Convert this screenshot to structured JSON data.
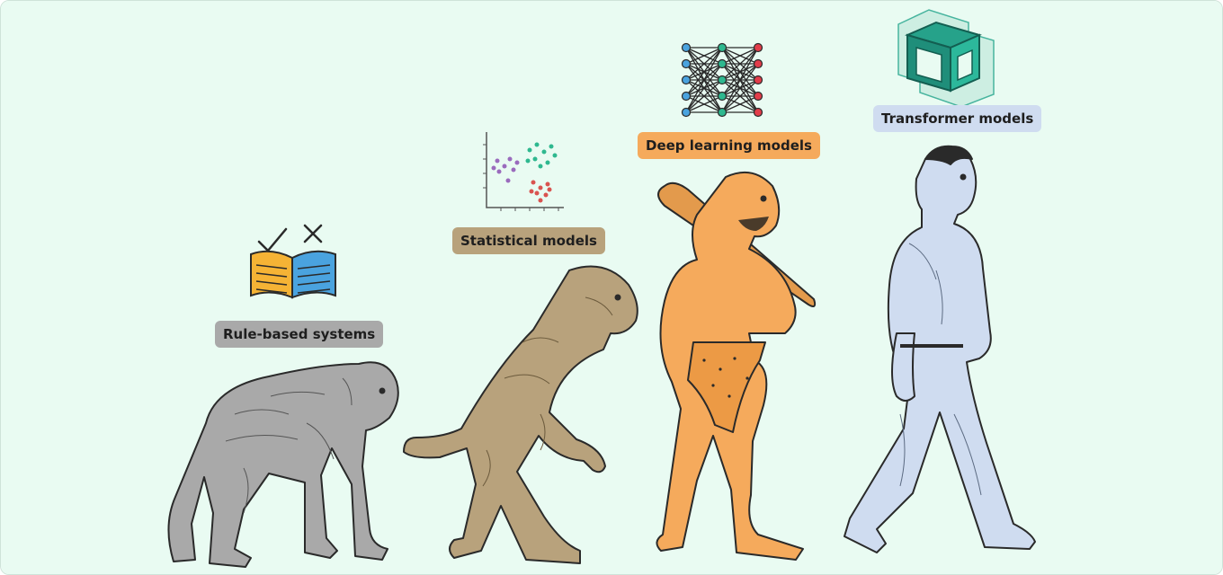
{
  "colors": {
    "background": "#e9fbf2",
    "stage1": "#a9a9a9",
    "stage2": "#b8a27c",
    "stage3": "#f5aa5c",
    "stage4": "#cfdcf0",
    "outline": "#2a2a2a",
    "accent_teal": "#1fa38a"
  },
  "stages": [
    {
      "label": "Rule-based systems",
      "color": "#a9a9a9",
      "icon": "book-check-cross-icon",
      "figure": "chimpanzee"
    },
    {
      "label": "Statistical models",
      "color": "#b8a27c",
      "icon": "scatter-plot-icon",
      "figure": "early-hominid"
    },
    {
      "label": "Deep learning models",
      "color": "#f5aa5c",
      "icon": "neural-network-icon",
      "figure": "caveman-with-club"
    },
    {
      "label": "Transformer models",
      "color": "#cfdcf0",
      "icon": "3d-cube-icon",
      "figure": "modern-man-walking"
    }
  ]
}
